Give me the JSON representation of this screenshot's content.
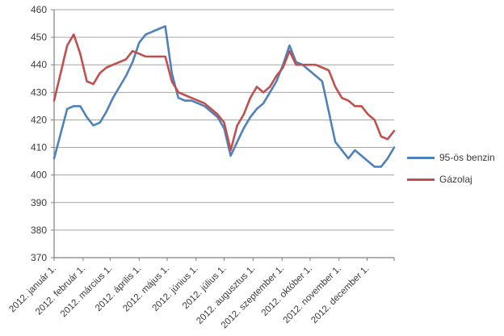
{
  "chart_data": {
    "type": "line",
    "title": "",
    "x_axis": {
      "tick_labels": [
        "2012. január 1.",
        "2012. február 1.",
        "2012. március 1.",
        "2012. április 1.",
        "2012. május 1.",
        "2012. június 1.",
        "2012. július 1.",
        "2012. augusztus 1.",
        "2012. szeptember 1.",
        "2012. október 1.",
        "2012. november 1.",
        "2012. december 1."
      ],
      "tick_day_positions": [
        0,
        31,
        60,
        91,
        121,
        152,
        182,
        213,
        244,
        274,
        305,
        335
      ],
      "total_days": 364,
      "unit": "weekly samples across 2012"
    },
    "y_axis": {
      "min": 370,
      "max": 460,
      "step": 10,
      "tick_labels": [
        "370",
        "380",
        "390",
        "400",
        "410",
        "420",
        "430",
        "440",
        "450",
        "460"
      ]
    },
    "grid": true,
    "legend_position": "right",
    "series": [
      {
        "name": "95-ös benzin",
        "color": "#4F81BD",
        "weekly_values": [
          406,
          415,
          424,
          425,
          425,
          421,
          418,
          419,
          423,
          428,
          432,
          436,
          441,
          448,
          451,
          452,
          453,
          454,
          437,
          428,
          427,
          427,
          426,
          425,
          423,
          421,
          417,
          407,
          412,
          417,
          421,
          424,
          426,
          430,
          434,
          440,
          447,
          441,
          440,
          438,
          436,
          434,
          423,
          412,
          409,
          406,
          409,
          407,
          405,
          403,
          403,
          406,
          410
        ]
      },
      {
        "name": "Gázolaj",
        "color": "#C0504D",
        "weekly_values": [
          427,
          437,
          447,
          451,
          444,
          434,
          433,
          437,
          439,
          440,
          441,
          442,
          445,
          444,
          443,
          443,
          443,
          443,
          434,
          430,
          429,
          428,
          427,
          426,
          424,
          422,
          419,
          409,
          418,
          422,
          428,
          432,
          430,
          432,
          436,
          439,
          445,
          440,
          440,
          440,
          440,
          439,
          438,
          432,
          428,
          427,
          425,
          425,
          422,
          420,
          414,
          413,
          416
        ]
      }
    ],
    "style": {
      "gridline_color": "#A6A6A6",
      "axis_color": "#808080",
      "label_color": "#3b3b3b",
      "background": "#FFFFFF",
      "line_width": 2.6
    }
  },
  "legend": {
    "items": [
      {
        "label": "95-ös benzin"
      },
      {
        "label": "Gázolaj"
      }
    ]
  }
}
